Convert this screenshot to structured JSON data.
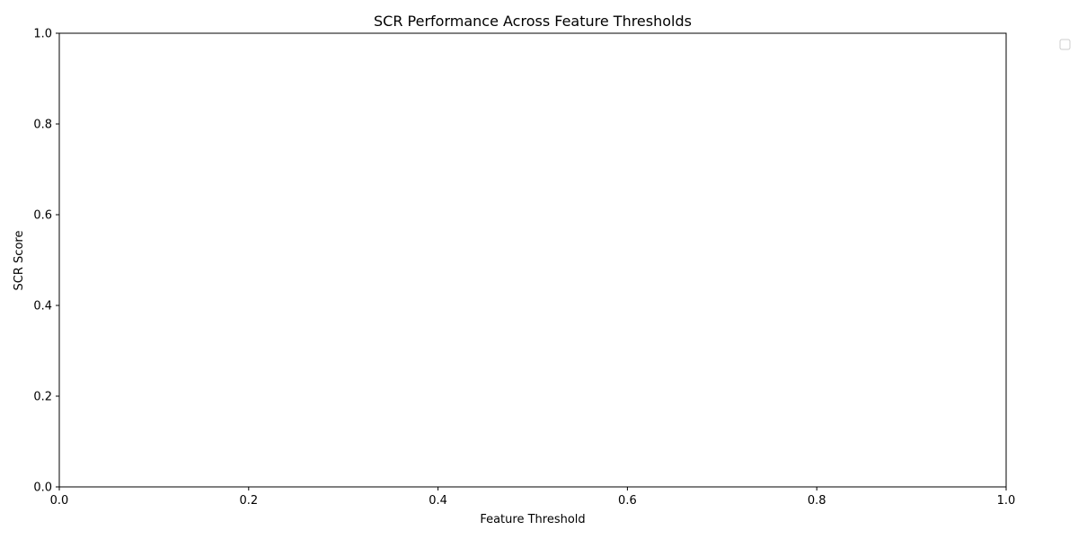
{
  "chart_data": {
    "type": "line",
    "title": "SCR Performance Across Feature Thresholds",
    "xlabel": "Feature Threshold",
    "ylabel": "SCR Score",
    "xlim": [
      0.0,
      1.0
    ],
    "ylim": [
      0.0,
      1.0
    ],
    "x_ticks": [
      "0.0",
      "0.2",
      "0.4",
      "0.6",
      "0.8",
      "1.0"
    ],
    "y_ticks": [
      "0.0",
      "0.2",
      "0.4",
      "0.6",
      "0.8",
      "1.0"
    ],
    "series": [],
    "grid": false,
    "legend": {
      "placement": "outside-top-right",
      "entries": []
    }
  },
  "colors": {
    "background": "#ffffff",
    "axes": "#000000",
    "legend_border": "#cccccc"
  }
}
